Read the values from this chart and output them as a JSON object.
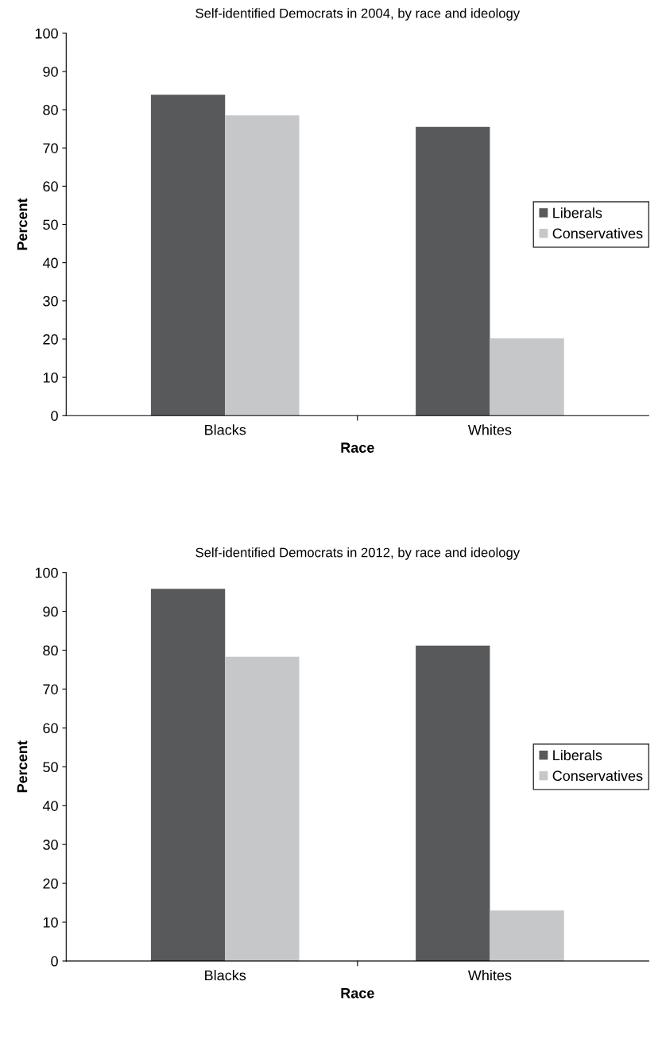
{
  "chart_data": [
    {
      "type": "bar",
      "title": "Self-identified Democrats in 2004, by race and ideology",
      "xlabel": "Race",
      "ylabel": "Percent",
      "categories": [
        "Blacks",
        "Whites"
      ],
      "series": [
        {
          "name": "Liberals",
          "color": "#58595b",
          "values": [
            83.9,
            75.5
          ]
        },
        {
          "name": "Conservatives",
          "color": "#c6c7c9",
          "values": [
            78.5,
            20.2
          ]
        }
      ],
      "ylim": [
        0,
        100
      ],
      "yticks": [
        0,
        10,
        20,
        30,
        40,
        50,
        60,
        70,
        80,
        90,
        100
      ],
      "grid": false,
      "legend": "right"
    },
    {
      "type": "bar",
      "title": "Self-identified Democrats in 2012, by race and ideology",
      "xlabel": "Race",
      "ylabel": "Percent",
      "categories": [
        "Blacks",
        "Whites"
      ],
      "series": [
        {
          "name": "Liberals",
          "color": "#58595b",
          "values": [
            95.8,
            81.2
          ]
        },
        {
          "name": "Conservatives",
          "color": "#c6c7c9",
          "values": [
            78.3,
            13
          ]
        }
      ],
      "ylim": [
        0,
        100
      ],
      "yticks": [
        0,
        10,
        20,
        30,
        40,
        50,
        60,
        70,
        80,
        90,
        100
      ],
      "grid": false,
      "legend": "right"
    }
  ]
}
